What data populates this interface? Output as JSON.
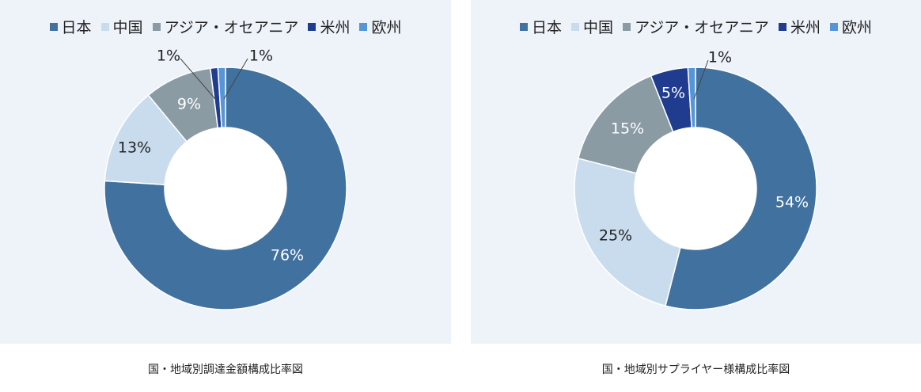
{
  "chart_data": [
    {
      "type": "pie",
      "title": "国・地域別調達金額構成比率図",
      "categories": [
        "日本",
        "中国",
        "アジア・オセアニア",
        "米州",
        "欧州"
      ],
      "values": [
        76,
        13,
        9,
        1,
        1
      ],
      "labels": [
        "76%",
        "13%",
        "9%",
        "1%",
        "1%"
      ],
      "colors": [
        "#41729f",
        "#c9dcee",
        "#8b9ba4",
        "#1f3c8f",
        "#5596d8"
      ],
      "donut": true,
      "legend": "top"
    },
    {
      "type": "pie",
      "title": "国・地域別サプライヤー様構成比率図",
      "categories": [
        "日本",
        "中国",
        "アジア・オセアニア",
        "米州",
        "欧州"
      ],
      "values": [
        54,
        25,
        15,
        5,
        1
      ],
      "labels": [
        "54%",
        "25%",
        "15%",
        "5%",
        "1%"
      ],
      "colors": [
        "#41729f",
        "#c9dcee",
        "#8b9ba4",
        "#1f3c8f",
        "#5596d8"
      ],
      "donut": true,
      "legend": "top"
    }
  ]
}
